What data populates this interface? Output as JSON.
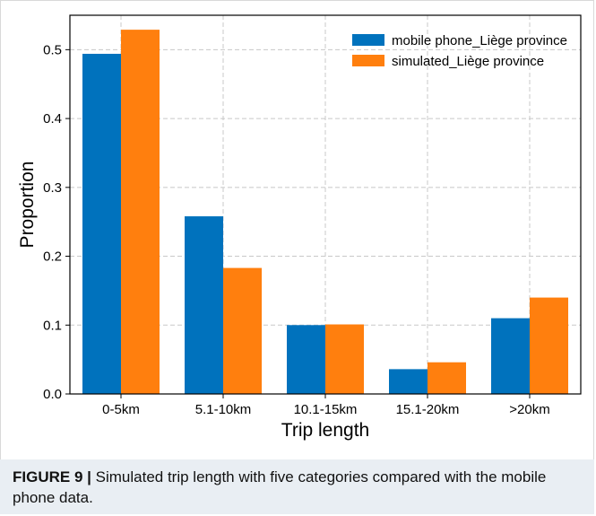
{
  "chart_data": {
    "type": "bar",
    "categories": [
      "0-5km",
      "5.1-10km",
      "10.1-15km",
      "15.1-20km",
      ">20km"
    ],
    "series": [
      {
        "name": "mobile phone_Liège province",
        "values": [
          0.494,
          0.258,
          0.1,
          0.036,
          0.11
        ],
        "color": "#0072bd"
      },
      {
        "name": "simulated_Liège province",
        "values": [
          0.529,
          0.183,
          0.101,
          0.046,
          0.14
        ],
        "color": "#ff7f0e"
      }
    ],
    "title": "",
    "xlabel": "Trip length",
    "ylabel": "Proportion",
    "ylim": [
      0,
      0.55
    ],
    "yticks": [
      0.0,
      0.1,
      0.2,
      0.3,
      0.4,
      0.5
    ],
    "ytick_labels": [
      "0.0",
      "0.1",
      "0.2",
      "0.3",
      "0.4",
      "0.5"
    ],
    "grid": true,
    "legend_position": "top-right"
  },
  "caption": {
    "label": "FIGURE 9",
    "separator": "|",
    "text": "Simulated trip length with five categories compared with the mobile phone data."
  }
}
